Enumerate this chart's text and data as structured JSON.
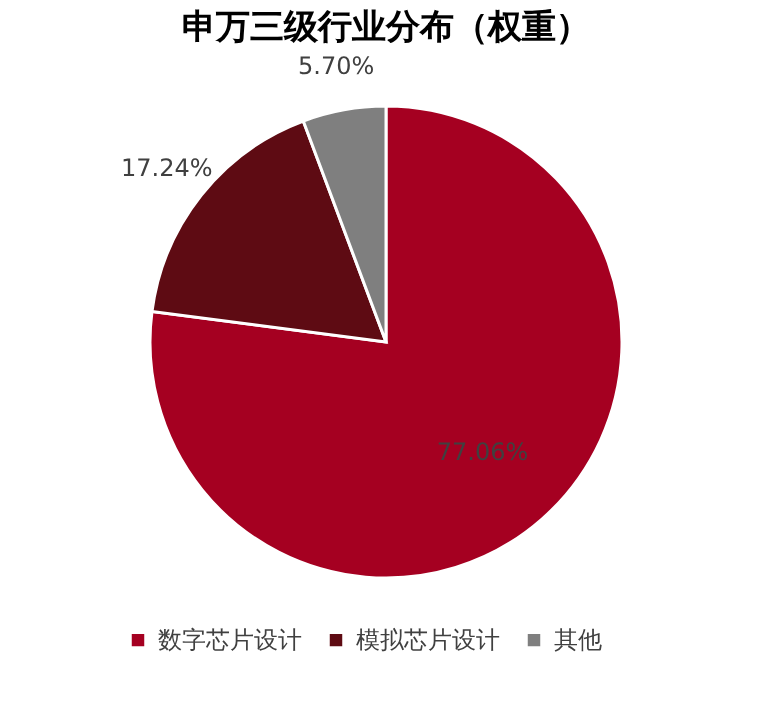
{
  "chart_data": {
    "type": "pie",
    "title": "申万三级行业分布（权重）",
    "categories": [
      "数字芯片设计",
      "模拟芯片设计",
      "其他"
    ],
    "values": [
      77.06,
      17.24,
      5.7
    ],
    "colors": [
      "#a50021",
      "#5e0b13",
      "#7f7f7f"
    ],
    "value_labels": [
      "77.06%",
      "17.24%",
      "5.70%"
    ],
    "legend": "bottom"
  }
}
